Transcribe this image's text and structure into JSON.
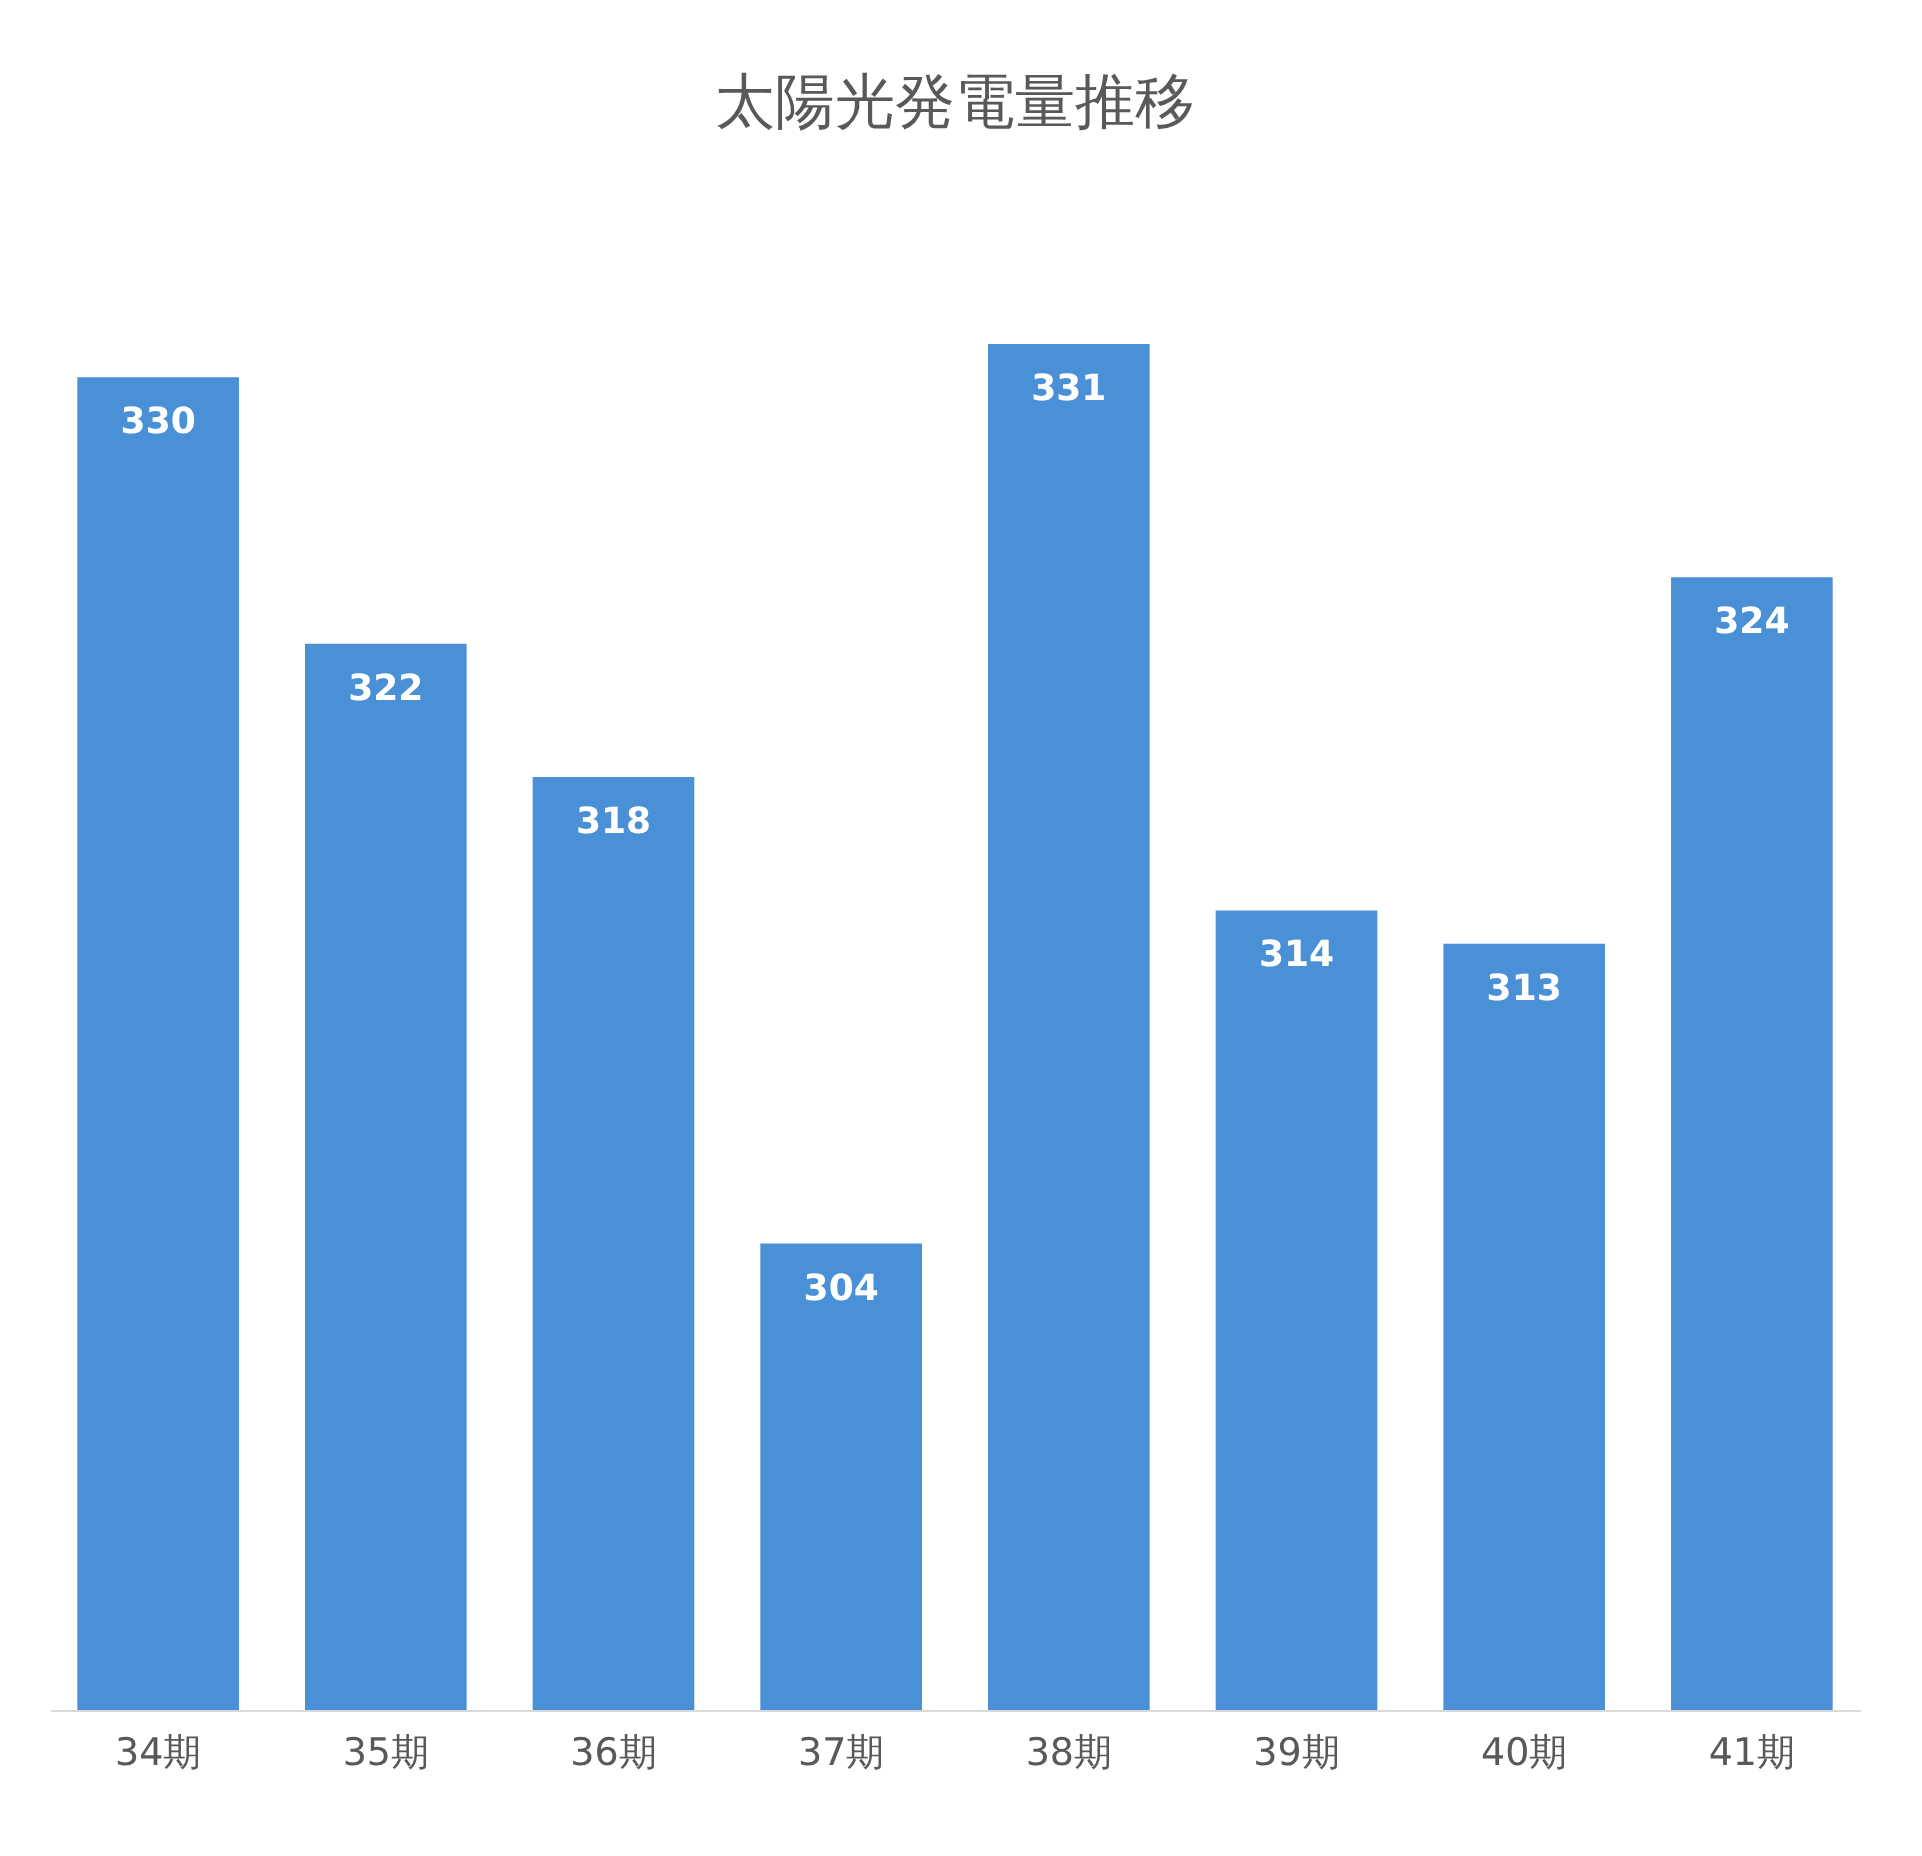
{
  "chart_data": {
    "type": "bar",
    "title": "太陽光発電量推移",
    "categories": [
      "34期",
      "35期",
      "36期",
      "37期",
      "38期",
      "39期",
      "40期",
      "41期"
    ],
    "values": [
      330,
      322,
      318,
      304,
      331,
      314,
      313,
      324
    ],
    "color": "#4a90d6",
    "ylim": [
      290,
      331
    ],
    "data_labels": true,
    "tick_labels": "x"
  }
}
